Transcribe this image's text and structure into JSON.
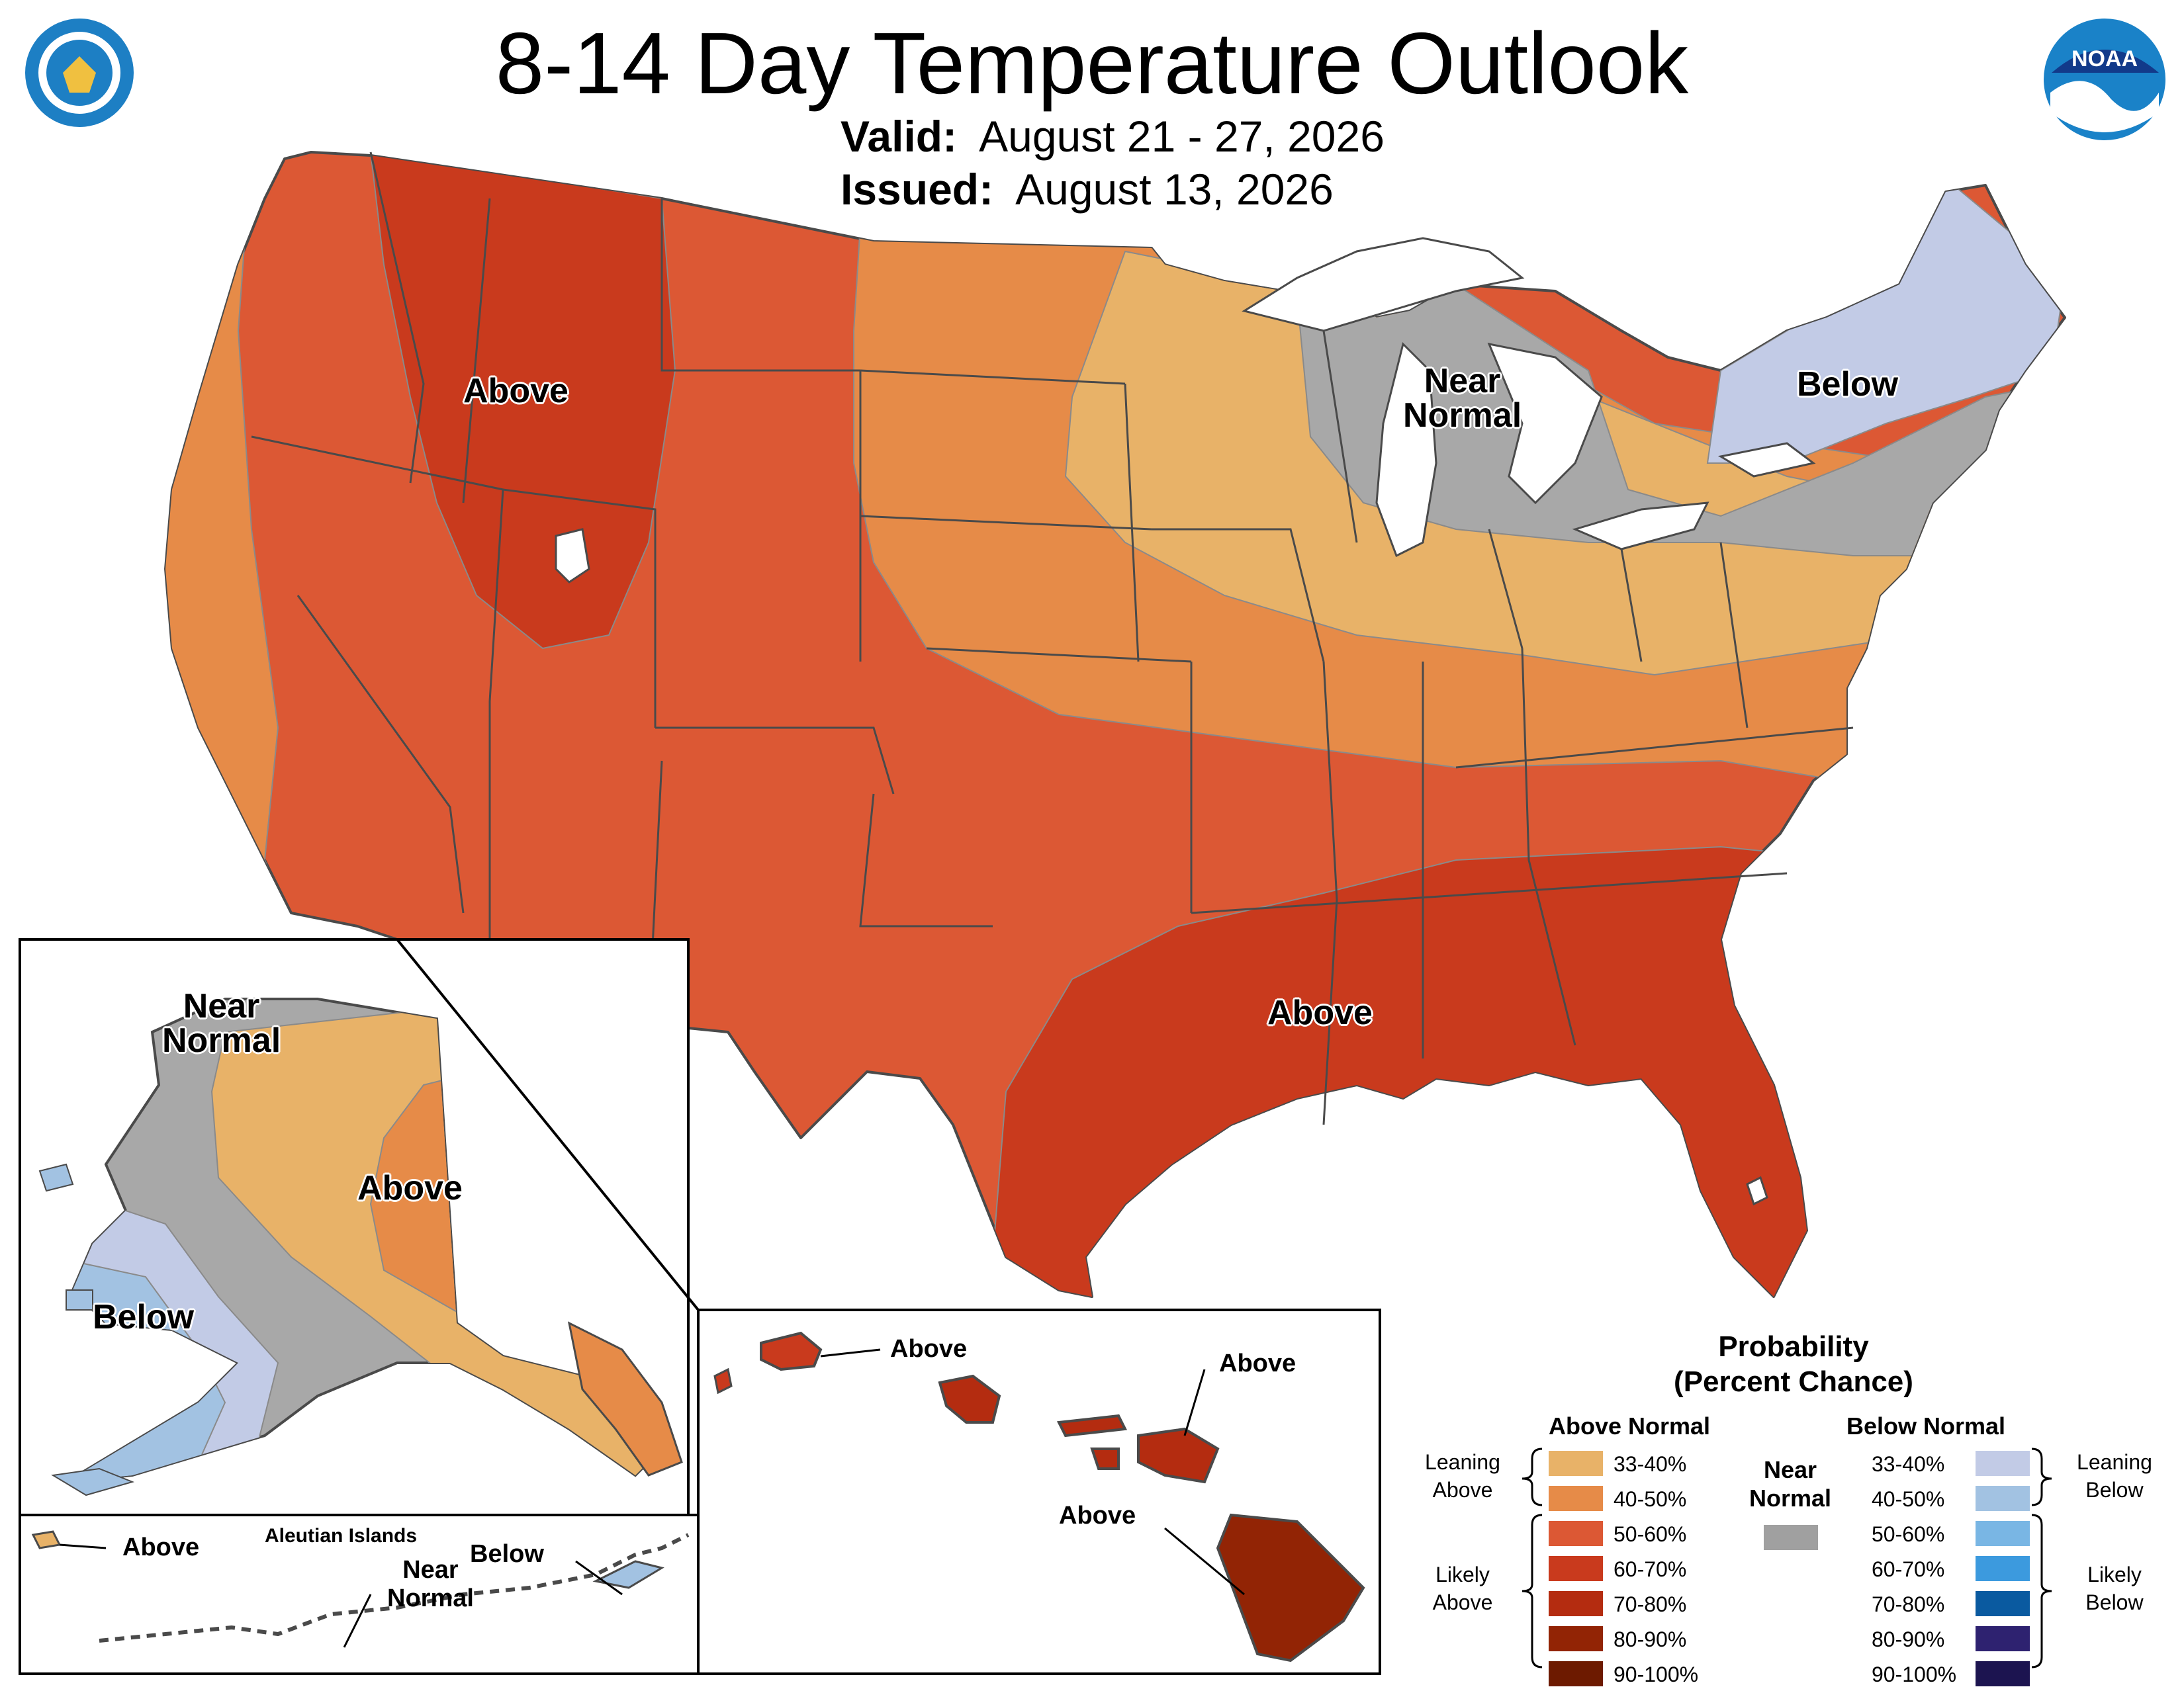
{
  "header": {
    "title": "8-14 Day Temperature Outlook",
    "valid_label": "Valid:",
    "valid_value": "August 21 - 27, 2026",
    "issued_label": "Issued:",
    "issued_value": "August 13, 2026",
    "left_seal_icon": "department-of-commerce-seal-icon",
    "right_logo_icon": "noaa-logo-icon"
  },
  "map_labels": {
    "conus_west_above": "Above",
    "conus_near_normal": "Near\nNormal",
    "conus_northeast_below": "Below",
    "conus_southeast_above": "Above",
    "alaska_near_normal": "Near\nNormal",
    "alaska_above": "Above",
    "alaska_below": "Below",
    "aleutian_title": "Aleutian Islands",
    "aleutian_above": "Above",
    "aleutian_below": "Below",
    "aleutian_near_normal": "Near\nNormal",
    "hawaii_kauai_above": "Above",
    "hawaii_maui_above": "Above",
    "hawaii_big_island_above": "Above"
  },
  "legend": {
    "title": "Probability\n(Percent Chance)",
    "above_header": "Above Normal",
    "below_header": "Below Normal",
    "near_normal_label": "Near\nNormal",
    "near_normal_color": "#a0a0a0",
    "leaning_above": "Leaning\nAbove",
    "likely_above": "Likely\nAbove",
    "leaning_below": "Leaning\nBelow",
    "likely_below": "Likely\nBelow",
    "above_bins": [
      {
        "label": "33-40%",
        "color": "#e8b268"
      },
      {
        "label": "40-50%",
        "color": "#e68b48"
      },
      {
        "label": "50-60%",
        "color": "#dc5834"
      },
      {
        "label": "60-70%",
        "color": "#c93a1d"
      },
      {
        "label": "70-80%",
        "color": "#b42c10"
      },
      {
        "label": "80-90%",
        "color": "#922405"
      },
      {
        "label": "90-100%",
        "color": "#6d1a00"
      }
    ],
    "below_bins": [
      {
        "label": "33-40%",
        "color": "#c2cbe6"
      },
      {
        "label": "40-50%",
        "color": "#a2c2e2"
      },
      {
        "label": "50-60%",
        "color": "#79b6e4"
      },
      {
        "label": "60-70%",
        "color": "#3c9ade"
      },
      {
        "label": "70-80%",
        "color": "#0a5aa0"
      },
      {
        "label": "80-90%",
        "color": "#2e2270"
      },
      {
        "label": "90-100%",
        "color": "#1c1450"
      }
    ]
  }
}
